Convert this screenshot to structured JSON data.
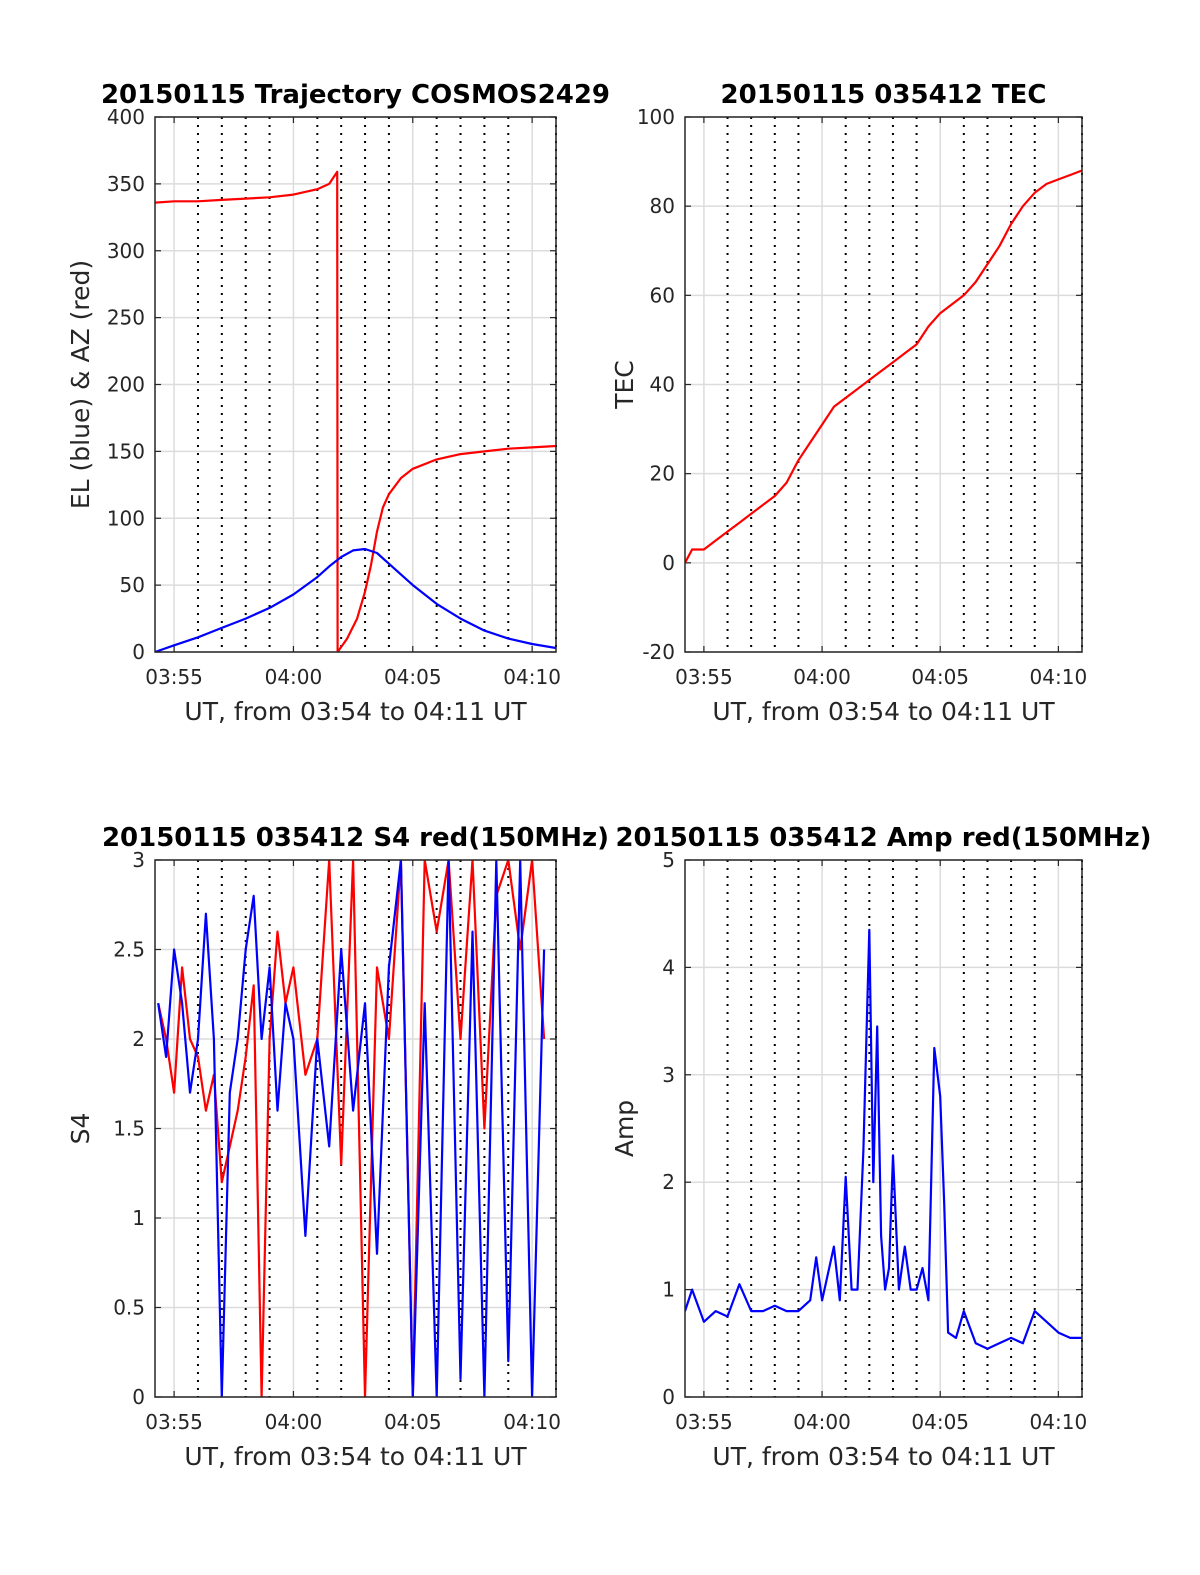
{
  "colors": {
    "red": "#ff0000",
    "blue": "#0000ff",
    "grid": "#dcdcdc",
    "frame": "#262626",
    "background": "#ffffff"
  },
  "chart_data": [
    {
      "id": "trajectory",
      "type": "line",
      "title": "20150115 Trajectory COSMOS2429",
      "xlabel": "UT, from 03:54 to 04:11 UT",
      "ylabel": "EL (blue) & AZ (red)",
      "x_unit": "UT",
      "xlim": [
        "03:54:12",
        "04:11:00"
      ],
      "ylim": [
        0,
        400
      ],
      "x_tick_labels": [
        "03:55",
        "04:00",
        "04:05",
        "04:10"
      ],
      "y_tick_labels": [
        "0",
        "50",
        "100",
        "150",
        "200",
        "250",
        "300",
        "350",
        "400"
      ],
      "grid": true,
      "series": [
        {
          "color": "#ff0000",
          "x": [
            "03:54:12",
            "03:55:00",
            "03:56:00",
            "03:57:00",
            "03:58:00",
            "03:59:00",
            "04:00:00",
            "04:01:00",
            "04:01:30",
            "04:01:50",
            "04:01:51",
            "04:02:15",
            "04:02:40",
            "04:03:00",
            "04:03:15",
            "04:03:30",
            "04:03:45",
            "04:04:00",
            "04:04:30",
            "04:05:00",
            "04:06:00",
            "04:07:00",
            "04:08:00",
            "04:09:00",
            "04:10:00",
            "04:11:00"
          ],
          "values": [
            336,
            337,
            337,
            338,
            339,
            340,
            342,
            346,
            350,
            359,
            0,
            10,
            25,
            45,
            65,
            90,
            108,
            118,
            130,
            137,
            144,
            148,
            150,
            152,
            153,
            154
          ]
        },
        {
          "color": "#0000ff",
          "x": [
            "03:54:12",
            "03:55:00",
            "03:56:00",
            "03:57:00",
            "03:58:00",
            "03:59:00",
            "04:00:00",
            "04:01:00",
            "04:01:30",
            "04:02:00",
            "04:02:30",
            "04:03:00",
            "04:03:30",
            "04:04:00",
            "04:04:30",
            "04:05:00",
            "04:06:00",
            "04:07:00",
            "04:08:00",
            "04:09:00",
            "04:10:00",
            "04:11:00"
          ],
          "values": [
            0,
            5,
            11,
            18,
            25,
            33,
            43,
            56,
            64,
            71,
            76,
            77,
            74,
            66,
            58,
            50,
            36,
            25,
            16,
            10,
            6,
            3
          ]
        }
      ]
    },
    {
      "id": "tec",
      "type": "line",
      "title": "20150115 035412 TEC",
      "xlabel": "UT, from 03:54 to 04:11 UT",
      "ylabel": "TEC",
      "x_unit": "UT",
      "xlim": [
        "03:54:12",
        "04:11:00"
      ],
      "ylim": [
        -20,
        100
      ],
      "x_tick_labels": [
        "03:55",
        "04:00",
        "04:05",
        "04:10"
      ],
      "y_tick_labels": [
        "-20",
        "0",
        "20",
        "40",
        "60",
        "80",
        "100"
      ],
      "grid": true,
      "series": [
        {
          "color": "#ff0000",
          "x": [
            "03:54:12",
            "03:54:30",
            "03:55:00",
            "03:55:30",
            "03:56:00",
            "03:56:30",
            "03:57:00",
            "03:57:30",
            "03:58:00",
            "03:58:30",
            "03:59:00",
            "03:59:30",
            "04:00:00",
            "04:00:30",
            "04:01:00",
            "04:01:30",
            "04:02:00",
            "04:02:30",
            "04:03:00",
            "04:03:30",
            "04:04:00",
            "04:04:30",
            "04:05:00",
            "04:05:30",
            "04:06:00",
            "04:06:30",
            "04:07:00",
            "04:07:30",
            "04:08:00",
            "04:08:30",
            "04:09:00",
            "04:09:30",
            "04:10:00",
            "04:10:30",
            "04:11:00"
          ],
          "values": [
            0,
            3,
            3,
            5,
            7,
            9,
            11,
            13,
            15,
            18,
            23,
            27,
            31,
            35,
            37,
            39,
            41,
            43,
            45,
            47,
            49,
            53,
            56,
            58,
            60,
            63,
            67,
            71,
            76,
            80,
            83,
            85,
            86,
            87,
            88
          ]
        }
      ]
    },
    {
      "id": "s4",
      "type": "line",
      "title": "20150115 035412 S4 red(150MHz)",
      "xlabel": "UT, from 03:54 to 04:11 UT",
      "ylabel": "S4",
      "x_unit": "UT",
      "xlim": [
        "03:54:12",
        "04:11:00"
      ],
      "ylim": [
        0,
        3
      ],
      "x_tick_labels": [
        "03:55",
        "04:00",
        "04:05",
        "04:10"
      ],
      "y_tick_labels": [
        "0",
        "0.5",
        "1",
        "1.5",
        "2",
        "2.5",
        "3"
      ],
      "grid": true,
      "series": [
        {
          "color": "#ff0000",
          "x": [
            "03:54:20",
            "03:54:40",
            "03:55:00",
            "03:55:20",
            "03:55:40",
            "03:56:00",
            "03:56:20",
            "03:56:40",
            "03:57:00",
            "03:57:20",
            "03:57:40",
            "03:58:00",
            "03:58:20",
            "03:58:40",
            "03:59:00",
            "03:59:20",
            "03:59:40",
            "04:00:00",
            "04:00:30",
            "04:01:00",
            "04:01:30",
            "04:02:00",
            "04:02:30",
            "04:03:00",
            "04:03:30",
            "04:04:00",
            "04:04:30",
            "04:05:00",
            "04:05:30",
            "04:06:00",
            "04:06:30",
            "04:07:00",
            "04:07:30",
            "04:08:00",
            "04:08:30",
            "04:09:00",
            "04:09:30",
            "04:10:00",
            "04:10:30"
          ],
          "values": [
            2.2,
            2.0,
            1.7,
            2.4,
            2.0,
            1.9,
            1.6,
            1.8,
            1.2,
            1.4,
            1.6,
            1.9,
            2.3,
            0.0,
            2.0,
            2.6,
            2.2,
            2.4,
            1.8,
            2.0,
            3.0,
            1.3,
            3.0,
            0.0,
            2.4,
            2.0,
            3.0,
            0.0,
            3.0,
            2.6,
            3.0,
            2.0,
            3.0,
            1.5,
            2.8,
            3.0,
            2.5,
            3.0,
            2.0
          ]
        },
        {
          "color": "#0000ff",
          "x": [
            "03:54:20",
            "03:54:40",
            "03:55:00",
            "03:55:20",
            "03:55:40",
            "03:56:00",
            "03:56:20",
            "03:56:40",
            "03:57:00",
            "03:57:20",
            "03:57:40",
            "03:58:00",
            "03:58:20",
            "03:58:40",
            "03:59:00",
            "03:59:20",
            "03:59:40",
            "04:00:00",
            "04:00:30",
            "04:01:00",
            "04:01:30",
            "04:02:00",
            "04:02:30",
            "04:03:00",
            "04:03:30",
            "04:04:00",
            "04:04:30",
            "04:05:00",
            "04:05:30",
            "04:06:00",
            "04:06:30",
            "04:07:00",
            "04:07:30",
            "04:08:00",
            "04:08:30",
            "04:09:00",
            "04:09:30",
            "04:10:00",
            "04:10:30"
          ],
          "values": [
            2.2,
            1.9,
            2.5,
            2.2,
            1.7,
            2.0,
            2.7,
            2.0,
            0.0,
            1.7,
            2.0,
            2.5,
            2.8,
            2.0,
            2.4,
            1.6,
            2.2,
            2.0,
            0.9,
            2.0,
            1.4,
            2.5,
            1.6,
            2.2,
            0.8,
            2.4,
            3.0,
            0.0,
            2.2,
            0.0,
            3.0,
            0.1,
            2.6,
            0.0,
            3.0,
            0.2,
            3.0,
            0.0,
            2.5
          ]
        }
      ]
    },
    {
      "id": "amp",
      "type": "line",
      "title": "20150115 035412 Amp red(150MHz)",
      "xlabel": "UT, from 03:54 to 04:11 UT",
      "ylabel": "Amp",
      "x_unit": "UT",
      "xlim": [
        "03:54:12",
        "04:11:00"
      ],
      "ylim": [
        0,
        5
      ],
      "x_tick_labels": [
        "03:55",
        "04:00",
        "04:05",
        "04:10"
      ],
      "y_tick_labels": [
        "0",
        "1",
        "2",
        "3",
        "4",
        "5"
      ],
      "grid": true,
      "series": [
        {
          "color": "#0000ff",
          "x": [
            "03:54:12",
            "03:54:30",
            "03:55:00",
            "03:55:30",
            "03:56:00",
            "03:56:30",
            "03:57:00",
            "03:57:30",
            "03:58:00",
            "03:58:30",
            "03:59:00",
            "03:59:30",
            "03:59:45",
            "04:00:00",
            "04:00:30",
            "04:00:45",
            "04:01:00",
            "04:01:15",
            "04:01:30",
            "04:01:45",
            "04:02:00",
            "04:02:10",
            "04:02:20",
            "04:02:30",
            "04:02:40",
            "04:02:50",
            "04:03:00",
            "04:03:15",
            "04:03:30",
            "04:03:45",
            "04:04:00",
            "04:04:15",
            "04:04:30",
            "04:04:45",
            "04:05:00",
            "04:05:10",
            "04:05:20",
            "04:05:40",
            "04:06:00",
            "04:06:30",
            "04:07:00",
            "04:07:30",
            "04:08:00",
            "04:08:30",
            "04:09:00",
            "04:09:30",
            "04:10:00",
            "04:10:30",
            "04:11:00"
          ],
          "values": [
            0.8,
            1.0,
            0.7,
            0.8,
            0.75,
            1.05,
            0.8,
            0.8,
            0.85,
            0.8,
            0.8,
            0.9,
            1.3,
            0.9,
            1.4,
            0.9,
            2.05,
            1.0,
            1.0,
            2.3,
            4.35,
            2.0,
            3.45,
            1.5,
            1.0,
            1.2,
            2.25,
            1.0,
            1.4,
            1.0,
            1.0,
            1.2,
            0.9,
            3.25,
            2.8,
            1.8,
            0.6,
            0.55,
            0.8,
            0.5,
            0.45,
            0.5,
            0.55,
            0.5,
            0.8,
            0.7,
            0.6,
            0.55,
            0.55
          ]
        }
      ]
    }
  ]
}
